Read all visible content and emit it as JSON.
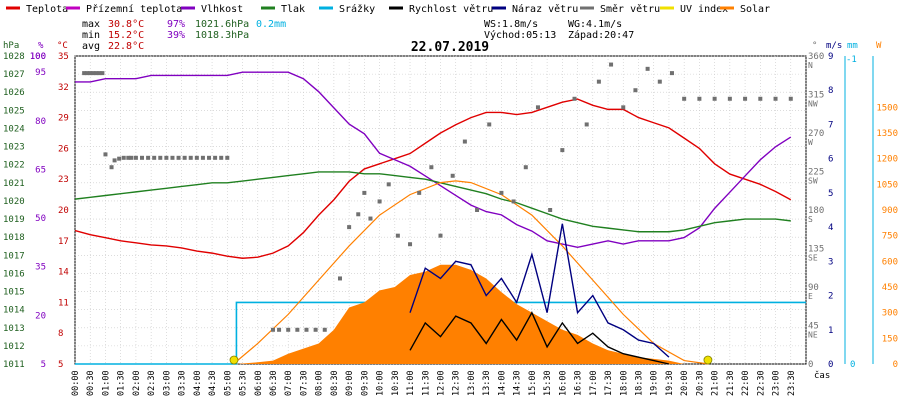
{
  "chart_data": {
    "type": "line",
    "title": "22.07.2019",
    "legend": [
      {
        "name": "Teplota",
        "color": "#e00000"
      },
      {
        "name": "Přízemní teplota",
        "color": "#c000c0"
      },
      {
        "name": "Vlhkost",
        "color": "#8000c0"
      },
      {
        "name": "Tlak",
        "color": "#208020"
      },
      {
        "name": "Srážky",
        "color": "#00b0e0"
      },
      {
        "name": "Rychlost větru",
        "color": "#000000"
      },
      {
        "name": "Náraz větru",
        "color": "#000080"
      },
      {
        "name": "Směr větru",
        "color": "#707070"
      },
      {
        "name": "UV index",
        "color": "#f0e000"
      },
      {
        "name": "Solar",
        "color": "#ff8000"
      }
    ],
    "stats": {
      "max_label": "max",
      "max_temp": "30.8°C",
      "max_hum": "97%",
      "max_press": "1021.6hPa",
      "rain": "0.2mm",
      "min_label": "min",
      "min_temp": "15.2°C",
      "min_hum": "39%",
      "min_press": "1018.3hPa",
      "avg_label": "avg",
      "avg_temp": "22.8°C",
      "ws": "WS:1.8m/s",
      "wg": "WG:4.1m/s",
      "sunrise": "Východ:05:13",
      "sunset": "Západ:20:47"
    },
    "axis_units": {
      "hpa": "hPa",
      "pct": "%",
      "degc": "°C",
      "deg": "°",
      "ms": "m/s",
      "mm": "mm",
      "w": "W",
      "time": "čas"
    },
    "xlim": [
      0,
      24
    ],
    "x_ticks": [
      "00:00",
      "00:30",
      "01:00",
      "01:30",
      "02:00",
      "02:30",
      "03:00",
      "03:30",
      "04:00",
      "04:30",
      "05:00",
      "05:30",
      "06:00",
      "06:30",
      "07:00",
      "07:30",
      "08:00",
      "08:30",
      "09:00",
      "09:30",
      "10:00",
      "10:30",
      "11:00",
      "11:30",
      "12:00",
      "12:30",
      "13:00",
      "13:30",
      "14:00",
      "14:30",
      "15:00",
      "15:30",
      "16:00",
      "16:30",
      "17:00",
      "17:30",
      "18:00",
      "18:30",
      "19:00",
      "19:30",
      "20:00",
      "20:30",
      "21:00",
      "21:30",
      "22:00",
      "22:30",
      "23:00",
      "23:30"
    ],
    "axes": {
      "pressure": {
        "ylim": [
          1011,
          1028
        ],
        "ticks": [
          1011,
          1012,
          1013,
          1014,
          1015,
          1016,
          1017,
          1018,
          1019,
          1020,
          1021,
          1022,
          1023,
          1024,
          1025,
          1026,
          1027,
          1028
        ]
      },
      "humidity": {
        "ylim": [
          5,
          100
        ],
        "ticks": [
          5,
          10,
          15,
          20,
          25,
          30,
          35,
          40,
          45,
          50,
          55,
          60,
          65,
          70,
          75,
          80,
          85,
          90,
          95,
          100
        ],
        "labels": [
          "5",
          "",
          "",
          "20",
          "",
          "",
          "35",
          "",
          "",
          "50",
          "",
          "",
          "65",
          "",
          "",
          "80",
          "",
          "",
          "95",
          ""
        ],
        "extra": [
          {
            "v": 100,
            "t": "100"
          }
        ]
      },
      "temperature": {
        "ylim": [
          5,
          35
        ],
        "ticks": [
          5,
          8,
          11,
          14,
          17,
          20,
          23,
          26,
          29,
          32,
          35
        ]
      },
      "direction": {
        "ylim": [
          0,
          360
        ],
        "ticks": [
          {
            "v": 360,
            "a": "360",
            "b": "N"
          },
          {
            "v": 315,
            "a": "315",
            "b": "NW"
          },
          {
            "v": 270,
            "a": "270",
            "b": "W"
          },
          {
            "v": 225,
            "a": "225",
            "b": "SW"
          },
          {
            "v": 180,
            "a": "180",
            "b": "S"
          },
          {
            "v": 135,
            "a": "135",
            "b": "SE"
          },
          {
            "v": 90,
            "a": "90",
            "b": "E"
          },
          {
            "v": 45,
            "a": "45",
            "b": "NE"
          },
          {
            "v": 0,
            "a": "0",
            "b": ""
          }
        ]
      },
      "wind": {
        "ylim": [
          0,
          9
        ],
        "ticks": [
          0,
          1,
          2,
          3,
          4,
          5,
          6,
          7,
          8,
          9
        ]
      },
      "rain": {
        "ylim": [
          0,
          1
        ],
        "ticks": [
          "0",
          "-1"
        ]
      },
      "solar": {
        "ylim": [
          0,
          1800
        ],
        "ticks": [
          0,
          150,
          300,
          450,
          600,
          750,
          900,
          1050,
          1200,
          1350,
          1500
        ]
      }
    },
    "series": [
      {
        "name": "Teplota",
        "axis": "temperature",
        "x": [
          0.0,
          0.5,
          1.0,
          1.5,
          2.0,
          2.5,
          3.0,
          3.5,
          4.0,
          4.5,
          5.0,
          5.5,
          6.0,
          6.5,
          7.0,
          7.5,
          8.0,
          8.5,
          9.0,
          9.5,
          10.0,
          10.5,
          11.0,
          11.5,
          12.0,
          12.5,
          13.0,
          13.5,
          14.0,
          14.5,
          15.0,
          15.5,
          16.0,
          16.5,
          17.0,
          17.5,
          18.0,
          18.5,
          19.0,
          19.5,
          20.0,
          20.5,
          21.0,
          21.5,
          22.0,
          22.5,
          23.0,
          23.5
        ],
        "y": [
          18.0,
          17.6,
          17.3,
          17.0,
          16.8,
          16.6,
          16.5,
          16.3,
          16.0,
          15.8,
          15.5,
          15.3,
          15.4,
          15.8,
          16.5,
          17.8,
          19.5,
          21.0,
          22.8,
          24.0,
          24.5,
          25.0,
          25.5,
          26.5,
          27.5,
          28.3,
          29.0,
          29.5,
          29.5,
          29.3,
          29.5,
          30.0,
          30.5,
          30.8,
          30.2,
          29.8,
          29.8,
          29.0,
          28.5,
          28.0,
          27.0,
          26.0,
          24.5,
          23.5,
          23.0,
          22.5,
          21.8,
          21.0
        ]
      },
      {
        "name": "Vlhkost",
        "axis": "humidity",
        "x": [
          0.0,
          0.5,
          1.0,
          1.5,
          2.0,
          2.5,
          3.0,
          3.5,
          4.0,
          4.5,
          5.0,
          5.5,
          6.0,
          6.5,
          7.0,
          7.5,
          8.0,
          8.5,
          9.0,
          9.5,
          10.0,
          10.5,
          11.0,
          11.5,
          12.0,
          12.5,
          13.0,
          13.5,
          14.0,
          14.5,
          15.0,
          15.5,
          16.0,
          16.5,
          17.0,
          17.5,
          18.0,
          18.5,
          19.0,
          19.5,
          20.0,
          20.5,
          21.0,
          21.5,
          22.0,
          22.5,
          23.0,
          23.5
        ],
        "y": [
          92,
          92,
          93,
          93,
          93,
          94,
          94,
          94,
          94,
          94,
          94,
          95,
          95,
          95,
          95,
          93,
          89,
          84,
          79,
          76,
          70,
          68,
          66,
          63,
          60,
          57,
          54,
          52,
          51,
          48,
          46,
          43,
          42,
          41,
          42,
          43,
          42,
          43,
          43,
          43,
          44,
          47,
          53,
          58,
          63,
          68,
          72,
          75
        ]
      },
      {
        "name": "Tlak",
        "axis": "pressure",
        "x": [
          0.0,
          0.5,
          1.0,
          1.5,
          2.0,
          2.5,
          3.0,
          3.5,
          4.0,
          4.5,
          5.0,
          5.5,
          6.0,
          6.5,
          7.0,
          7.5,
          8.0,
          8.5,
          9.0,
          9.5,
          10.0,
          10.5,
          11.0,
          11.5,
          12.0,
          12.5,
          13.0,
          13.5,
          14.0,
          14.5,
          15.0,
          15.5,
          16.0,
          16.5,
          17.0,
          17.5,
          18.0,
          18.5,
          19.0,
          19.5,
          20.0,
          20.5,
          21.0,
          21.5,
          22.0,
          22.5,
          23.0,
          23.5
        ],
        "y": [
          1020.1,
          1020.2,
          1020.3,
          1020.4,
          1020.5,
          1020.6,
          1020.7,
          1020.8,
          1020.9,
          1021.0,
          1021.0,
          1021.1,
          1021.2,
          1021.3,
          1021.4,
          1021.5,
          1021.6,
          1021.6,
          1021.6,
          1021.5,
          1021.5,
          1021.4,
          1021.3,
          1021.2,
          1021.0,
          1020.8,
          1020.6,
          1020.4,
          1020.1,
          1019.9,
          1019.6,
          1019.3,
          1019.0,
          1018.8,
          1018.6,
          1018.5,
          1018.4,
          1018.3,
          1018.3,
          1018.3,
          1018.4,
          1018.6,
          1018.8,
          1018.9,
          1019.0,
          1019.0,
          1019.0,
          1018.9
        ]
      },
      {
        "name": "Srážky",
        "axis": "rain",
        "x": [
          0,
          5.3,
          5.3,
          24
        ],
        "y": [
          0,
          0,
          0.2,
          0.2
        ]
      },
      {
        "name": "Solar",
        "axis": "solar",
        "area": true,
        "x": [
          5.3,
          6.0,
          6.5,
          7.0,
          7.5,
          8.0,
          8.5,
          9.0,
          9.5,
          10.0,
          10.5,
          11.0,
          11.5,
          12.0,
          12.5,
          13.0,
          13.5,
          14.0,
          14.5,
          15.0,
          15.5,
          16.0,
          16.5,
          17.0,
          17.5,
          18.0,
          18.5,
          19.0,
          19.5,
          20.0
        ],
        "y": [
          0,
          10,
          20,
          60,
          90,
          120,
          200,
          330,
          360,
          430,
          450,
          520,
          540,
          580,
          580,
          550,
          500,
          420,
          350,
          300,
          250,
          200,
          170,
          120,
          80,
          60,
          40,
          30,
          20,
          0
        ]
      },
      {
        "name": "Solar max",
        "axis": "solar",
        "x": [
          5.2,
          6.0,
          7.0,
          8.0,
          9.0,
          10.0,
          11.0,
          12.0,
          12.5,
          13.0,
          14.0,
          15.0,
          16.0,
          17.0,
          18.0,
          19.0,
          20.0,
          20.8
        ],
        "y": [
          0,
          120,
          290,
          490,
          690,
          870,
          990,
          1060,
          1070,
          1060,
          990,
          870,
          690,
          490,
          290,
          120,
          20,
          0
        ]
      },
      {
        "name": "Rychlost větru",
        "axis": "wind",
        "x": [
          11.0,
          11.5,
          12.0,
          12.5,
          13.0,
          13.5,
          14.0,
          14.5,
          15.0,
          15.5,
          16.0,
          16.5,
          17.0,
          17.5,
          18.0,
          18.5,
          19.0,
          19.5
        ],
        "y": [
          0.4,
          1.2,
          0.8,
          1.4,
          1.2,
          0.6,
          1.3,
          0.7,
          1.5,
          0.5,
          1.2,
          0.6,
          0.9,
          0.5,
          0.3,
          0.2,
          0.1,
          0.0
        ]
      },
      {
        "name": "Náraz větru",
        "axis": "wind",
        "x": [
          11.0,
          11.5,
          12.0,
          12.5,
          13.0,
          13.5,
          14.0,
          14.5,
          15.0,
          15.5,
          16.0,
          16.5,
          17.0,
          17.5,
          18.0,
          18.5,
          19.0,
          19.5
        ],
        "y": [
          1.5,
          2.8,
          2.5,
          3.0,
          2.9,
          2.0,
          2.5,
          1.8,
          3.2,
          1.5,
          4.1,
          1.5,
          2.0,
          1.2,
          1.0,
          0.7,
          0.6,
          0.2
        ]
      },
      {
        "name": "Směr větru",
        "axis": "direction",
        "markers": true,
        "x": [
          0.3,
          0.4,
          0.5,
          0.6,
          0.7,
          0.8,
          0.9,
          1.0,
          1.2,
          1.3,
          1.45,
          1.6,
          1.75,
          1.85,
          2.0,
          2.2,
          2.4,
          2.6,
          2.8,
          3.0,
          3.2,
          3.4,
          3.6,
          3.8,
          4.0,
          4.2,
          4.4,
          4.6,
          4.8,
          5.0,
          6.5,
          6.7,
          7.0,
          7.3,
          7.6,
          7.9,
          8.2,
          8.7,
          9.0,
          9.3,
          9.5,
          9.7,
          10.0,
          10.3,
          10.6,
          11.0,
          11.3,
          11.7,
          12.0,
          12.4,
          12.8,
          13.2,
          13.6,
          14.0,
          14.4,
          14.8,
          15.2,
          15.6,
          16.0,
          16.4,
          16.8,
          17.2,
          17.6,
          18.0,
          18.4,
          18.8,
          19.2,
          19.6,
          20.0,
          20.5,
          21.0,
          21.5,
          22.0,
          22.5,
          23.0,
          23.5
        ],
        "y": [
          340,
          340,
          340,
          340,
          340,
          340,
          340,
          245,
          230,
          238,
          240,
          241,
          241,
          241,
          241,
          241,
          241,
          241,
          241,
          241,
          241,
          241,
          241,
          241,
          241,
          241,
          241,
          241,
          241,
          241,
          40,
          40,
          40,
          40,
          40,
          40,
          40,
          100,
          160,
          175,
          200,
          170,
          190,
          210,
          150,
          140,
          200,
          230,
          150,
          220,
          260,
          180,
          280,
          200,
          190,
          230,
          300,
          180,
          250,
          310,
          280,
          330,
          350,
          300,
          320,
          345,
          330,
          340,
          310,
          310,
          310,
          310,
          310,
          310,
          310,
          310
        ]
      }
    ],
    "sun_markers": [
      {
        "x": 5.22
      },
      {
        "x": 20.78
      }
    ]
  }
}
